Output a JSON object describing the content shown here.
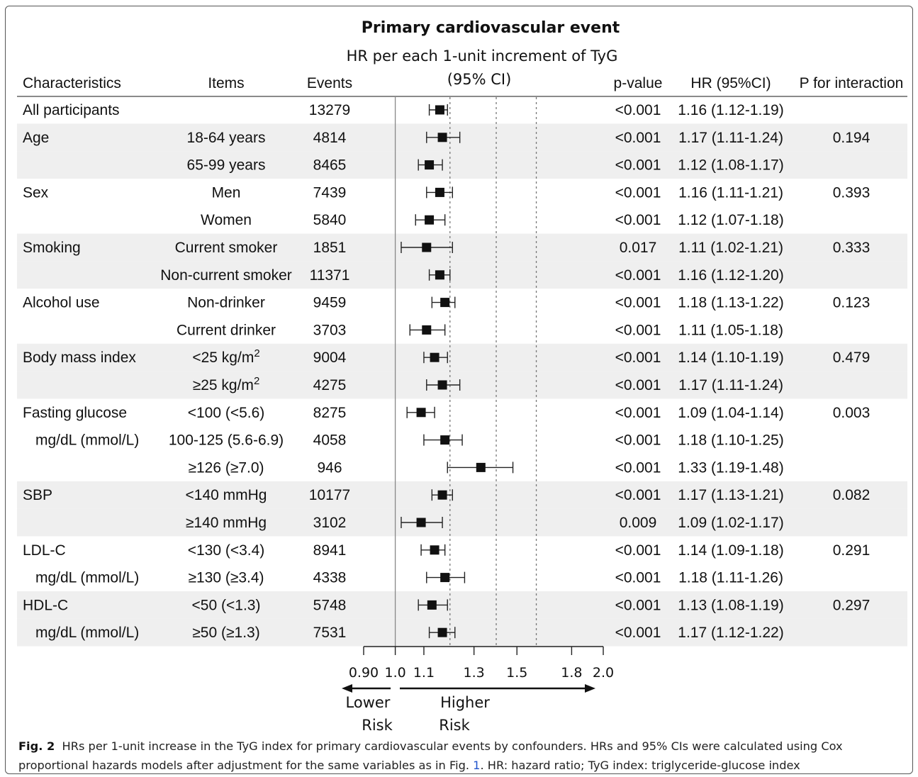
{
  "chart_data": {
    "type": "forest",
    "title": "Primary cardiovascular event",
    "subtitle_line1": "HR per each 1-unit increment of TyG",
    "subtitle_line2": "(95% CI)",
    "columns": {
      "characteristics": "Characteristics",
      "items": "Items",
      "events": "Events",
      "pvalue": "p-value",
      "hr": "HR (95%CI)",
      "pint": "P for interaction"
    },
    "rows": [
      {
        "characteristic": "All participants",
        "item": "",
        "events": "13279",
        "p": "<0.001",
        "hr_text": "1.16 (1.12-1.19)",
        "p_int": "",
        "hr": 1.16,
        "lo": 1.12,
        "hi": 1.19,
        "shade": false
      },
      {
        "characteristic": "Age",
        "item": "18-64 years",
        "events": "4814",
        "p": "<0.001",
        "hr_text": "1.17 (1.11-1.24)",
        "p_int": "0.194",
        "hr": 1.17,
        "lo": 1.11,
        "hi": 1.24,
        "shade": true
      },
      {
        "characteristic": "",
        "item": "65-99 years",
        "events": "8465",
        "p": "<0.001",
        "hr_text": "1.12 (1.08-1.17)",
        "p_int": "",
        "hr": 1.12,
        "lo": 1.08,
        "hi": 1.17,
        "shade": true
      },
      {
        "characteristic": "Sex",
        "item": "Men",
        "events": "7439",
        "p": "<0.001",
        "hr_text": "1.16 (1.11-1.21)",
        "p_int": "0.393",
        "hr": 1.16,
        "lo": 1.11,
        "hi": 1.21,
        "shade": false
      },
      {
        "characteristic": "",
        "item": "Women",
        "events": "5840",
        "p": "<0.001",
        "hr_text": "1.12 (1.07-1.18)",
        "p_int": "",
        "hr": 1.12,
        "lo": 1.07,
        "hi": 1.18,
        "shade": false
      },
      {
        "characteristic": "Smoking",
        "item": "Current smoker",
        "events": "1851",
        "p": "0.017",
        "hr_text": "1.11 (1.02-1.21)",
        "p_int": "0.333",
        "hr": 1.11,
        "lo": 1.02,
        "hi": 1.21,
        "shade": true
      },
      {
        "characteristic": "",
        "item": "Non-current smoker",
        "events": "11371",
        "p": "<0.001",
        "hr_text": "1.16 (1.12-1.20)",
        "p_int": "",
        "hr": 1.16,
        "lo": 1.12,
        "hi": 1.2,
        "shade": true
      },
      {
        "characteristic": "Alcohol use",
        "item": "Non-drinker",
        "events": "9459",
        "p": "<0.001",
        "hr_text": "1.18 (1.13-1.22)",
        "p_int": "0.123",
        "hr": 1.18,
        "lo": 1.13,
        "hi": 1.22,
        "shade": false
      },
      {
        "characteristic": "",
        "item": "Current drinker",
        "events": "3703",
        "p": "<0.001",
        "hr_text": "1.11 (1.05-1.18)",
        "p_int": "",
        "hr": 1.11,
        "lo": 1.05,
        "hi": 1.18,
        "shade": false
      },
      {
        "characteristic": "Body mass index",
        "item": "<25 kg/m",
        "item_sup": "2",
        "events": "9004",
        "p": "<0.001",
        "hr_text": "1.14 (1.10-1.19)",
        "p_int": "0.479",
        "hr": 1.14,
        "lo": 1.1,
        "hi": 1.19,
        "shade": true
      },
      {
        "characteristic": "",
        "item": "≥25 kg/m",
        "item_sup": "2",
        "events": "4275",
        "p": "<0.001",
        "hr_text": "1.17 (1.11-1.24)",
        "p_int": "",
        "hr": 1.17,
        "lo": 1.11,
        "hi": 1.24,
        "shade": true
      },
      {
        "characteristic": "Fasting glucose",
        "item": "<100 (<5.6)",
        "events": "8275",
        "p": "<0.001",
        "hr_text": "1.09 (1.04-1.14)",
        "p_int": "0.003",
        "hr": 1.09,
        "lo": 1.04,
        "hi": 1.14,
        "shade": false
      },
      {
        "characteristic": "mg/dL (mmol/L)",
        "item": "100-125 (5.6-6.9)",
        "events": "4058",
        "p": "<0.001",
        "hr_text": "1.18 (1.10-1.25)",
        "p_int": "",
        "hr": 1.18,
        "lo": 1.1,
        "hi": 1.25,
        "shade": false,
        "indent": true
      },
      {
        "characteristic": "",
        "item": "≥126 (≥7.0)",
        "events": "946",
        "p": "<0.001",
        "hr_text": "1.33 (1.19-1.48)",
        "p_int": "",
        "hr": 1.33,
        "lo": 1.19,
        "hi": 1.48,
        "shade": false
      },
      {
        "characteristic": "SBP",
        "item": "<140 mmHg",
        "events": "10177",
        "p": "<0.001",
        "hr_text": "1.17 (1.13-1.21)",
        "p_int": "0.082",
        "hr": 1.17,
        "lo": 1.13,
        "hi": 1.21,
        "shade": true
      },
      {
        "characteristic": "",
        "item": "≥140 mmHg",
        "events": "3102",
        "p": "0.009",
        "hr_text": "1.09 (1.02-1.17)",
        "p_int": "",
        "hr": 1.09,
        "lo": 1.02,
        "hi": 1.17,
        "shade": true
      },
      {
        "characteristic": "LDL-C",
        "item": "<130  (<3.4)",
        "events": "8941",
        "p": "<0.001",
        "hr_text": "1.14 (1.09-1.18)",
        "p_int": "0.291",
        "hr": 1.14,
        "lo": 1.09,
        "hi": 1.18,
        "shade": false
      },
      {
        "characteristic": "mg/dL (mmol/L)",
        "item": "≥130 (≥3.4)",
        "events": "4338",
        "p": "<0.001",
        "hr_text": "1.18 (1.11-1.26)",
        "p_int": "",
        "hr": 1.18,
        "lo": 1.11,
        "hi": 1.26,
        "shade": false,
        "indent": true
      },
      {
        "characteristic": "HDL-C",
        "item": "<50 (<1.3)",
        "events": "5748",
        "p": "<0.001",
        "hr_text": "1.13 (1.08-1.19)",
        "p_int": "0.297",
        "hr": 1.13,
        "lo": 1.08,
        "hi": 1.19,
        "shade": true
      },
      {
        "characteristic": "mg/dL (mmol/L)",
        "item": "≥50 (≥1.3)",
        "events": "7531",
        "p": "<0.001",
        "hr_text": "1.17 (1.12-1.22)",
        "p_int": "",
        "hr": 1.17,
        "lo": 1.12,
        "hi": 1.22,
        "shade": true,
        "indent": true
      }
    ],
    "x_axis": {
      "scale": "log",
      "ticks": [
        0.9,
        1.0,
        1.1,
        1.3,
        1.5,
        1.8,
        2.0
      ],
      "tick_labels": [
        "0.90",
        "1.0",
        "1.1",
        "1.3",
        "1.5",
        "1.8",
        "2.0"
      ],
      "range": [
        0.9,
        2.0
      ],
      "null_line": 1.0,
      "reference_lines": [
        1.2,
        1.4,
        1.6
      ]
    },
    "lower_risk_label": [
      "Lower",
      "Risk"
    ],
    "higher_risk_label": [
      "Higher",
      "Risk"
    ],
    "colors": {
      "shade": "#efefef",
      "marker": "#111111",
      "grid_dash": "#777777"
    }
  },
  "caption": {
    "fig_label": "Fig. 2",
    "text_before_ref": "HRs per 1-unit increase in the TyG index for primary cardiovascular events by confounders.  HRs and 95% CIs were calculated using Cox proportional hazards models after adjustment for the same variables as in Fig.",
    "ref": "1",
    "text_after_ref": ". HR: hazard ratio; TyG index: triglyceride-glucose index"
  }
}
